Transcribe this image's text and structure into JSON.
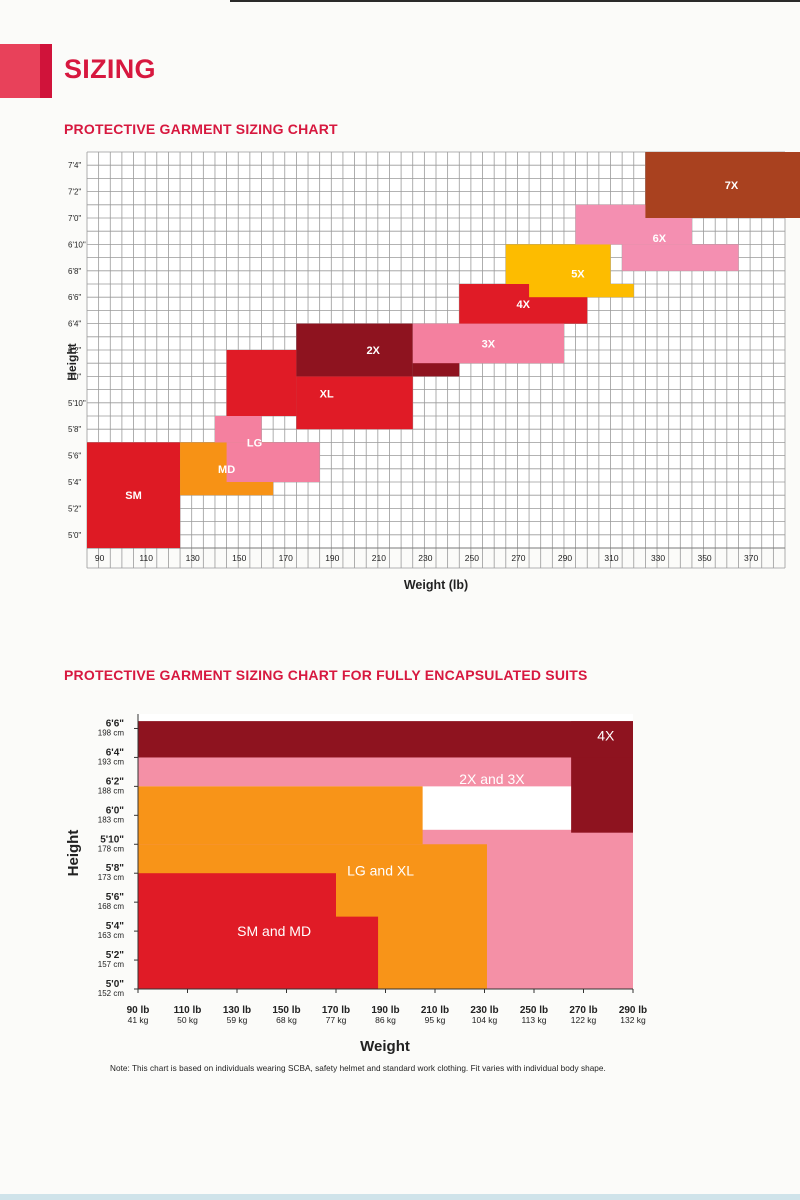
{
  "page": {
    "title": "SIZING",
    "note": "Note: This chart is based on individuals wearing SCBA, safety helmet and standard work clothing. Fit varies with individual body shape."
  },
  "chart_data": [
    {
      "type": "heatmap",
      "title": "PROTECTIVE GARMENT SIZING CHART",
      "xlabel": "Weight (lb)",
      "ylabel": "Height",
      "x_range_lb": [
        85,
        385
      ],
      "y_range_in": [
        59,
        89
      ],
      "x_tick_labels": [
        "90",
        "110",
        "130",
        "150",
        "170",
        "190",
        "210",
        "230",
        "250",
        "270",
        "290",
        "310",
        "330",
        "350",
        "370"
      ],
      "x_tick_values": [
        90,
        110,
        130,
        150,
        170,
        190,
        210,
        230,
        250,
        270,
        290,
        310,
        330,
        350,
        370
      ],
      "y_tick_labels": [
        "5'0\"",
        "5'2\"",
        "5'4\"",
        "5'6\"",
        "5'8\"",
        "5'10\"",
        "6'0\"",
        "6'2\"",
        "6'4\"",
        "6'6\"",
        "6'8\"",
        "6'10\"",
        "7'0\"",
        "7'2\"",
        "7'4\""
      ],
      "y_tick_values": [
        60,
        62,
        64,
        66,
        68,
        70,
        72,
        74,
        76,
        78,
        80,
        82,
        84,
        86,
        88
      ],
      "grid": true,
      "sizes": [
        {
          "label": "SM",
          "color": "#de1a24",
          "regions": [
            [
              85,
              125,
              59,
              67
            ]
          ]
        },
        {
          "label": "MD",
          "color": "#f79215",
          "regions": [
            [
              125,
              165,
              63,
              67
            ]
          ]
        },
        {
          "label": "LG",
          "color": "#f4809f",
          "regions": [
            [
              140,
              160,
              67,
              69
            ],
            [
              145,
              185,
              64,
              67
            ]
          ]
        },
        {
          "label": "XL",
          "color": "#e01b26",
          "regions": [
            [
              145,
              175,
              69,
              74
            ],
            [
              175,
              225,
              68,
              72
            ]
          ]
        },
        {
          "label": "2X",
          "color": "#8e131f",
          "regions": [
            [
              175,
              225,
              72,
              76
            ],
            [
              225,
              245,
              72,
              74
            ]
          ]
        },
        {
          "label": "3X",
          "color": "#f4809f",
          "regions": [
            [
              225,
              290,
              73,
              76
            ]
          ]
        },
        {
          "label": "4X",
          "color": "#e01b26",
          "regions": [
            [
              245,
              300,
              76,
              79
            ]
          ]
        },
        {
          "label": "5X",
          "color": "#fdbc00",
          "regions": [
            [
              265,
              310,
              79,
              82
            ],
            [
              275,
              320,
              78,
              79
            ]
          ]
        },
        {
          "label": "6X",
          "color": "#f48fb1",
          "regions": [
            [
              295,
              345,
              82,
              85
            ],
            [
              315,
              365,
              80,
              82
            ]
          ]
        },
        {
          "label": "7X",
          "color": "#a9411f",
          "regions": [
            [
              325,
              395,
              84,
              89
            ]
          ]
        }
      ]
    },
    {
      "type": "heatmap",
      "title": "PROTECTIVE GARMENT SIZING CHART FOR FULLY ENCAPSULATED SUITS",
      "xlabel": "Weight",
      "ylabel": "Height",
      "x_range_lb": [
        90,
        290
      ],
      "y_range_in": [
        60,
        79
      ],
      "x_tick_labels": [
        "90 lb",
        "110 lb",
        "130 lb",
        "150 lb",
        "170 lb",
        "190 lb",
        "210 lb",
        "230 lb",
        "250 lb",
        "270 lb",
        "290 lb"
      ],
      "x_tick_sub": [
        "41 kg",
        "50 kg",
        "59 kg",
        "68 kg",
        "77 kg",
        "86 kg",
        "95 kg",
        "104 kg",
        "113 kg",
        "122 kg",
        "132 kg"
      ],
      "x_tick_values": [
        90,
        110,
        130,
        150,
        170,
        190,
        210,
        230,
        250,
        270,
        290
      ],
      "y_tick_labels": [
        "5'0\"",
        "5'2\"",
        "5'4\"",
        "5'6\"",
        "5'8\"",
        "5'10\"",
        "6'0\"",
        "6'2\"",
        "6'4\"",
        "6'6\""
      ],
      "y_tick_sub": [
        "152 cm",
        "157 cm",
        "163 cm",
        "168 cm",
        "173 cm",
        "178 cm",
        "183 cm",
        "188 cm",
        "193 cm",
        "198 cm"
      ],
      "y_tick_values": [
        60,
        62,
        64,
        66,
        68,
        70,
        72,
        74,
        76,
        78
      ],
      "sizes": [
        {
          "label": "4X",
          "color": "#8e131f",
          "regions": [
            [
              90,
              290,
              76,
              78.5
            ]
          ]
        },
        {
          "label": "2X and 3X",
          "color": "#f490a6",
          "regions": [
            [
              90,
              270,
              74,
              76
            ],
            [
              90,
              290,
              60,
              71
            ]
          ]
        },
        {
          "label": "LG and XL",
          "color": "#f89418",
          "regions": [
            [
              90,
              205,
              70,
              74
            ],
            [
              90,
              231,
              60,
              70
            ]
          ]
        },
        {
          "label": "SM and MD",
          "color": "#e01b26",
          "regions": [
            [
              90,
              170,
              60,
              68
            ],
            [
              170,
              187,
              60,
              65
            ]
          ]
        }
      ]
    }
  ]
}
